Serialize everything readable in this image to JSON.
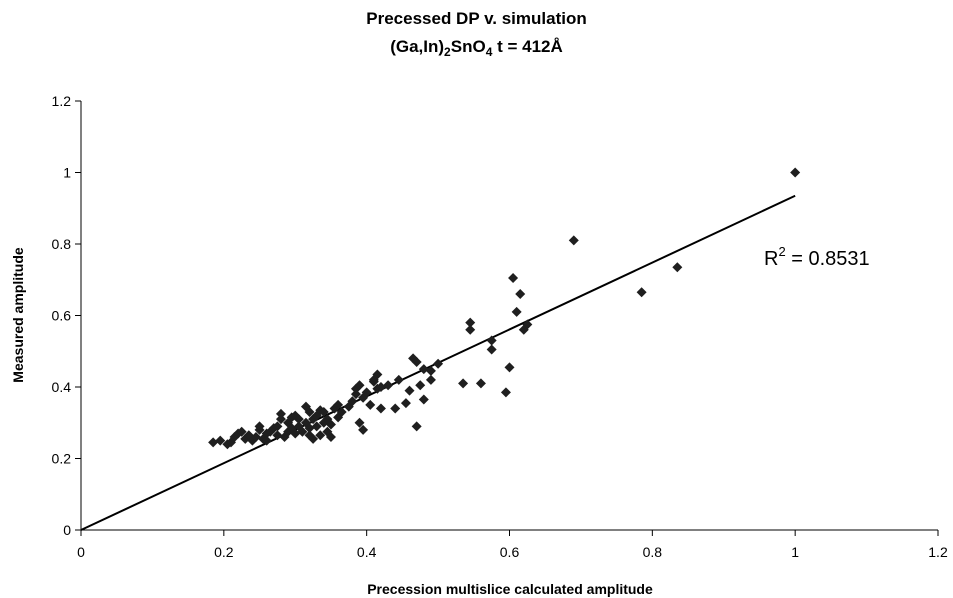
{
  "chart_data": {
    "type": "scatter",
    "title": "Precessed DP v. simulation",
    "subtitle": {
      "parts": [
        {
          "text": "(Ga,In)"
        },
        {
          "text": "2",
          "sub": true
        },
        {
          "text": "SnO"
        },
        {
          "text": "4",
          "sub": true
        },
        {
          "text": " t = 412Å"
        }
      ]
    },
    "xlabel": "Precession multislice calculated amplitude",
    "ylabel": "Measured amplitude",
    "xlim": [
      0,
      1.2
    ],
    "ylim": [
      0,
      1.2
    ],
    "xticks": [
      "0",
      "0.2",
      "0.4",
      "0.6",
      "0.8",
      "1",
      "1.2"
    ],
    "yticks": [
      "0",
      "0.2",
      "0.4",
      "0.6",
      "0.8",
      "1",
      "1.2"
    ],
    "grid": false,
    "marker": "diamond",
    "marker_color": "#1f1f1f",
    "trendline": {
      "x": [
        0,
        1.0
      ],
      "y": [
        0,
        0.935
      ],
      "color": "#000000"
    },
    "annotation": {
      "r2_prefix": "R",
      "r2_sup": "2",
      "r2_value": " = 0.8531"
    },
    "points": [
      [
        0.185,
        0.245
      ],
      [
        0.195,
        0.25
      ],
      [
        0.205,
        0.24
      ],
      [
        0.21,
        0.245
      ],
      [
        0.215,
        0.26
      ],
      [
        0.22,
        0.27
      ],
      [
        0.225,
        0.275
      ],
      [
        0.23,
        0.255
      ],
      [
        0.235,
        0.265
      ],
      [
        0.24,
        0.25
      ],
      [
        0.245,
        0.26
      ],
      [
        0.25,
        0.28
      ],
      [
        0.25,
        0.29
      ],
      [
        0.255,
        0.255
      ],
      [
        0.26,
        0.27
      ],
      [
        0.26,
        0.25
      ],
      [
        0.265,
        0.275
      ],
      [
        0.27,
        0.285
      ],
      [
        0.275,
        0.265
      ],
      [
        0.275,
        0.29
      ],
      [
        0.28,
        0.31
      ],
      [
        0.28,
        0.325
      ],
      [
        0.285,
        0.26
      ],
      [
        0.29,
        0.275
      ],
      [
        0.29,
        0.3
      ],
      [
        0.295,
        0.285
      ],
      [
        0.295,
        0.315
      ],
      [
        0.3,
        0.27
      ],
      [
        0.3,
        0.32
      ],
      [
        0.305,
        0.29
      ],
      [
        0.305,
        0.31
      ],
      [
        0.31,
        0.275
      ],
      [
        0.315,
        0.3
      ],
      [
        0.315,
        0.345
      ],
      [
        0.32,
        0.265
      ],
      [
        0.32,
        0.285
      ],
      [
        0.32,
        0.33
      ],
      [
        0.325,
        0.31
      ],
      [
        0.325,
        0.255
      ],
      [
        0.33,
        0.29
      ],
      [
        0.33,
        0.32
      ],
      [
        0.335,
        0.265
      ],
      [
        0.335,
        0.335
      ],
      [
        0.34,
        0.3
      ],
      [
        0.34,
        0.33
      ],
      [
        0.345,
        0.275
      ],
      [
        0.345,
        0.31
      ],
      [
        0.35,
        0.26
      ],
      [
        0.35,
        0.295
      ],
      [
        0.355,
        0.34
      ],
      [
        0.36,
        0.315
      ],
      [
        0.36,
        0.35
      ],
      [
        0.365,
        0.33
      ],
      [
        0.375,
        0.345
      ],
      [
        0.38,
        0.36
      ],
      [
        0.385,
        0.38
      ],
      [
        0.385,
        0.395
      ],
      [
        0.39,
        0.405
      ],
      [
        0.39,
        0.3
      ],
      [
        0.395,
        0.28
      ],
      [
        0.395,
        0.37
      ],
      [
        0.4,
        0.385
      ],
      [
        0.405,
        0.35
      ],
      [
        0.41,
        0.415
      ],
      [
        0.41,
        0.42
      ],
      [
        0.415,
        0.435
      ],
      [
        0.415,
        0.395
      ],
      [
        0.42,
        0.4
      ],
      [
        0.42,
        0.34
      ],
      [
        0.43,
        0.405
      ],
      [
        0.44,
        0.34
      ],
      [
        0.445,
        0.42
      ],
      [
        0.455,
        0.355
      ],
      [
        0.46,
        0.39
      ],
      [
        0.465,
        0.48
      ],
      [
        0.47,
        0.47
      ],
      [
        0.47,
        0.29
      ],
      [
        0.475,
        0.405
      ],
      [
        0.48,
        0.365
      ],
      [
        0.48,
        0.45
      ],
      [
        0.49,
        0.42
      ],
      [
        0.49,
        0.445
      ],
      [
        0.5,
        0.465
      ],
      [
        0.535,
        0.41
      ],
      [
        0.545,
        0.58
      ],
      [
        0.545,
        0.56
      ],
      [
        0.56,
        0.41
      ],
      [
        0.575,
        0.53
      ],
      [
        0.575,
        0.505
      ],
      [
        0.595,
        0.385
      ],
      [
        0.6,
        0.455
      ],
      [
        0.605,
        0.705
      ],
      [
        0.61,
        0.61
      ],
      [
        0.615,
        0.66
      ],
      [
        0.62,
        0.56
      ],
      [
        0.625,
        0.575
      ],
      [
        0.69,
        0.81
      ],
      [
        0.785,
        0.665
      ],
      [
        0.835,
        0.735
      ],
      [
        1.0,
        1.0
      ]
    ]
  }
}
